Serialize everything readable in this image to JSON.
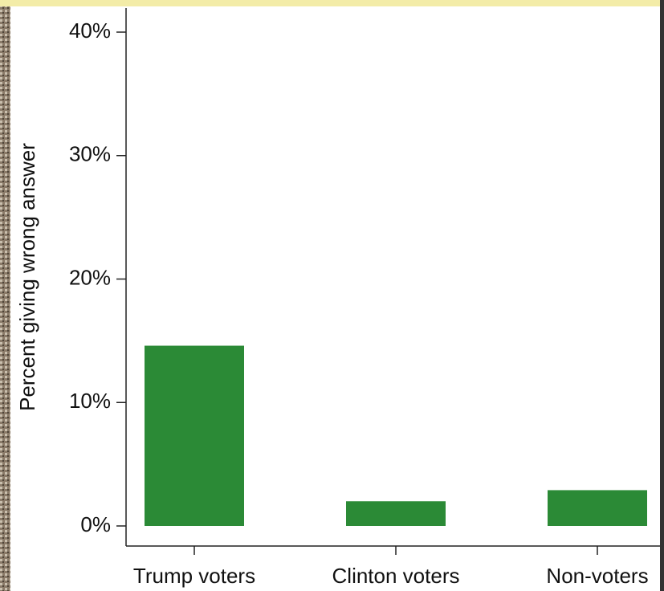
{
  "chart_data": {
    "type": "bar",
    "y_label": "Percent giving wrong answer",
    "categories": [
      "Trump voters",
      "Clinton voters",
      "Non-voters"
    ],
    "values": [
      14.6,
      2.0,
      2.9
    ],
    "color": "#2b8a36",
    "ylim": [
      0,
      40
    ],
    "yticks": [
      {
        "value": 0,
        "label": "0%"
      },
      {
        "value": 10,
        "label": "10%"
      },
      {
        "value": 20,
        "label": "20%"
      },
      {
        "value": 30,
        "label": "30%"
      },
      {
        "value": 40,
        "label": "40%"
      }
    ]
  }
}
